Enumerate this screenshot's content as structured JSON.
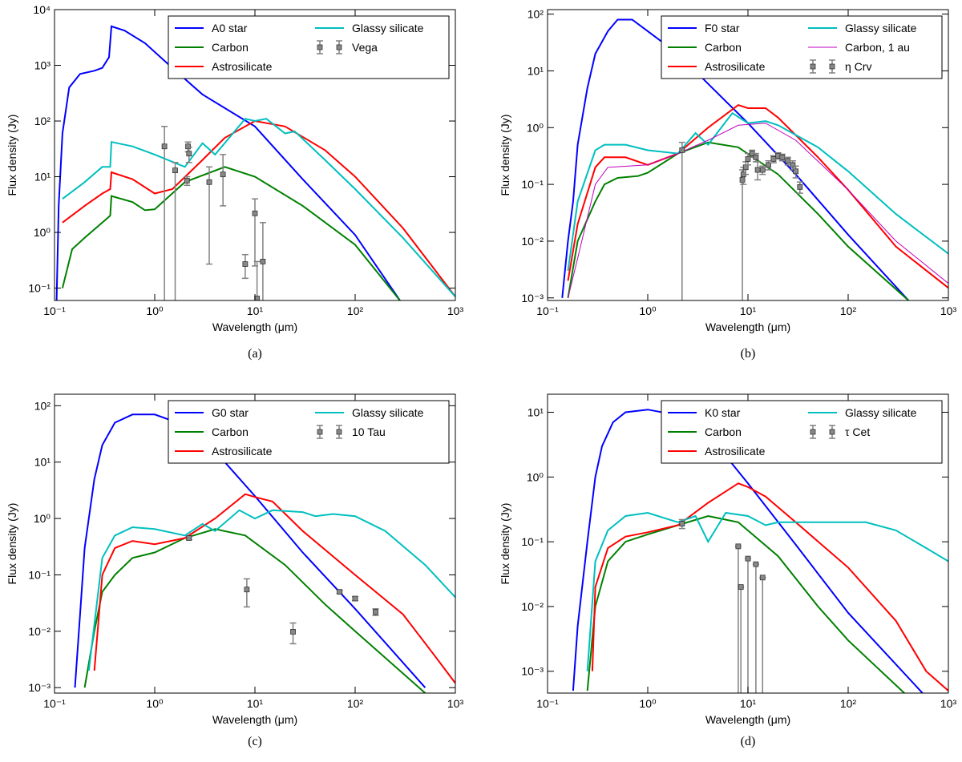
{
  "chart_data": [
    {
      "type": "line",
      "caption": "(a)",
      "x_label": "Wavelength (μm)",
      "y_label": "Flux density (Jy)",
      "log_x": true,
      "log_y": true,
      "legend": "upper right",
      "xlim": [
        0.1,
        1000
      ],
      "ylim": [
        0.06,
        10000
      ],
      "xticks": [
        {
          "value": 0.1,
          "label": "10⁻¹"
        },
        {
          "value": 1,
          "label": "10⁰"
        },
        {
          "value": 10,
          "label": "10¹"
        },
        {
          "value": 100,
          "label": "10²"
        },
        {
          "value": 1000,
          "label": "10³"
        }
      ],
      "yticks": [
        {
          "value": 0.1,
          "label": "10⁻¹"
        },
        {
          "value": 1,
          "label": "10⁰"
        },
        {
          "value": 10,
          "label": "10¹"
        },
        {
          "value": 100,
          "label": "10²"
        },
        {
          "value": 1000,
          "label": "10³"
        },
        {
          "value": 10000,
          "label": "10⁴"
        }
      ],
      "series": [
        {
          "name": "A0 star",
          "color": "#0000ff",
          "x": [
            0.105,
            0.11,
            0.12,
            0.14,
            0.18,
            0.25,
            0.3,
            0.35,
            0.37,
            0.5,
            0.8,
            1.5,
            3,
            10,
            30,
            100,
            280
          ],
          "values": [
            0.06,
            3,
            60,
            400,
            700,
            800,
            900,
            1400,
            5000,
            4200,
            2500,
            900,
            300,
            80,
            9,
            0.9,
            0.06
          ]
        },
        {
          "name": "Carbon",
          "color": "#008000",
          "x": [
            0.12,
            0.15,
            0.2,
            0.3,
            0.36,
            0.37,
            0.6,
            0.8,
            1,
            2,
            5,
            10,
            30,
            100,
            280
          ],
          "values": [
            0.1,
            0.5,
            0.8,
            1.5,
            2,
            4.5,
            3.5,
            2.5,
            2.6,
            8,
            15,
            10,
            3,
            0.6,
            0.06
          ]
        },
        {
          "name": "Astrosilicate",
          "color": "#ff0000",
          "x": [
            0.12,
            0.2,
            0.3,
            0.36,
            0.37,
            0.6,
            1,
            1.5,
            3,
            5,
            10,
            20,
            50,
            100,
            300,
            1000
          ],
          "values": [
            1.5,
            3,
            5,
            6,
            12,
            9,
            5,
            6,
            20,
            50,
            100,
            80,
            30,
            10,
            1.2,
            0.07
          ]
        },
        {
          "name": "Glassy silicate",
          "color": "#00bfbf",
          "x": [
            0.12,
            0.2,
            0.3,
            0.36,
            0.37,
            0.6,
            1,
            2,
            3,
            4,
            8,
            10,
            13,
            20,
            25,
            50,
            100,
            300,
            1000
          ],
          "values": [
            4,
            8,
            15,
            15,
            42,
            35,
            25,
            15,
            40,
            25,
            110,
            100,
            110,
            60,
            65,
            20,
            6,
            0.8,
            0.07
          ]
        },
        {
          "name": "Vega",
          "type": "errorbar",
          "color": "#808080",
          "x": [
            1.25,
            1.6,
            2.15,
            2.2,
            2.1,
            3.5,
            4.8,
            8,
            10,
            10.5,
            12
          ],
          "values": [
            35,
            13,
            35,
            26,
            8.5,
            8,
            11,
            0.27,
            2.2,
            0.065,
            0.3
          ],
          "lower": [
            0,
            0,
            28,
            18,
            7,
            0.27,
            3,
            0.15,
            0.25,
            0,
            0
          ],
          "upper": [
            80,
            18,
            42,
            34,
            10,
            15,
            25,
            0.4,
            4,
            0.3,
            1.5
          ]
        }
      ]
    },
    {
      "type": "line",
      "caption": "(b)",
      "x_label": "Wavelength (μm)",
      "y_label": "Flux density (Jy)",
      "log_x": true,
      "log_y": true,
      "legend": "upper right",
      "xlim": [
        0.1,
        1000
      ],
      "ylim": [
        0.0009,
        120
      ],
      "xticks": [
        {
          "value": 0.1,
          "label": "10⁻¹"
        },
        {
          "value": 1,
          "label": "10⁰"
        },
        {
          "value": 10,
          "label": "10¹"
        },
        {
          "value": 100,
          "label": "10²"
        },
        {
          "value": 1000,
          "label": "10³"
        }
      ],
      "yticks": [
        {
          "value": 0.001,
          "label": "10⁻³"
        },
        {
          "value": 0.01,
          "label": "10⁻²"
        },
        {
          "value": 0.1,
          "label": "10⁻¹"
        },
        {
          "value": 1,
          "label": "10⁰"
        },
        {
          "value": 10,
          "label": "10¹"
        },
        {
          "value": 100,
          "label": "10²"
        }
      ],
      "series": [
        {
          "name": "F0 star",
          "color": "#0000ff",
          "x": [
            0.14,
            0.16,
            0.18,
            0.2,
            0.25,
            0.3,
            0.4,
            0.5,
            0.7,
            1,
            2,
            5,
            10,
            30,
            100,
            400
          ],
          "values": [
            0.001,
            0.01,
            0.05,
            0.5,
            5,
            20,
            50,
            80,
            80,
            50,
            20,
            4,
            1.2,
            0.15,
            0.013,
            0.0009
          ]
        },
        {
          "name": "Carbon",
          "color": "#008000",
          "x": [
            0.16,
            0.2,
            0.3,
            0.37,
            0.5,
            0.8,
            1,
            2,
            4,
            8,
            20,
            50,
            100,
            400
          ],
          "values": [
            0.001,
            0.01,
            0.05,
            0.1,
            0.13,
            0.14,
            0.16,
            0.35,
            0.55,
            0.45,
            0.15,
            0.03,
            0.008,
            0.0009
          ]
        },
        {
          "name": "Astrosilicate",
          "color": "#ff0000",
          "x": [
            0.16,
            0.2,
            0.3,
            0.37,
            0.6,
            1,
            2,
            4,
            8,
            10,
            15,
            20,
            50,
            100,
            300,
            1000
          ],
          "values": [
            0.002,
            0.02,
            0.2,
            0.3,
            0.3,
            0.22,
            0.35,
            1,
            2.5,
            2.2,
            2.2,
            1.5,
            0.3,
            0.08,
            0.008,
            0.0015
          ]
        },
        {
          "name": "Glassy silicate",
          "color": "#00bfbf",
          "x": [
            0.16,
            0.2,
            0.3,
            0.37,
            0.6,
            1,
            2,
            3,
            4,
            7,
            10,
            15,
            20,
            50,
            100,
            300,
            1000
          ],
          "values": [
            0.003,
            0.05,
            0.4,
            0.5,
            0.5,
            0.4,
            0.35,
            0.8,
            0.5,
            1.8,
            1.2,
            1.3,
            1.1,
            0.45,
            0.17,
            0.03,
            0.006
          ]
        },
        {
          "name": "Carbon, 1 au",
          "color": "#bf00bf",
          "x": [
            0.16,
            0.2,
            0.3,
            0.4,
            1,
            2,
            4,
            8,
            15,
            30,
            100,
            300,
            1000
          ],
          "values": [
            0.001,
            0.005,
            0.1,
            0.2,
            0.22,
            0.35,
            0.6,
            1.1,
            1.2,
            0.6,
            0.08,
            0.01,
            0.0018
          ]
        },
        {
          "name": "η Crv",
          "type": "errorbar",
          "color": "#808080",
          "x": [
            2.2,
            8.8,
            9,
            9.5,
            10,
            11,
            12,
            12.5,
            14,
            16,
            18,
            20,
            22,
            25,
            28,
            30,
            33
          ],
          "values": [
            0.4,
            0.12,
            0.15,
            0.2,
            0.28,
            0.35,
            0.3,
            0.18,
            0.18,
            0.22,
            0.28,
            0.32,
            0.3,
            0.26,
            0.22,
            0.17,
            0.09
          ],
          "lower": [
            0,
            0,
            0.1,
            0.15,
            0.22,
            0.3,
            0.25,
            0.12,
            0.15,
            0.18,
            0.24,
            0.28,
            0.26,
            0.22,
            0.18,
            0.13,
            0.07
          ],
          "upper": [
            0.55,
            0.18,
            0.2,
            0.25,
            0.35,
            0.4,
            0.35,
            0.25,
            0.21,
            0.26,
            0.32,
            0.36,
            0.34,
            0.3,
            0.26,
            0.21,
            0.11
          ]
        }
      ]
    },
    {
      "type": "line",
      "caption": "(c)",
      "x_label": "Wavelength (μm)",
      "y_label": "Flux density (Jy)",
      "log_x": true,
      "log_y": true,
      "legend": "upper right",
      "xlim": [
        0.1,
        1000
      ],
      "ylim": [
        0.0008,
        160
      ],
      "xticks": [
        {
          "value": 0.1,
          "label": "10⁻¹"
        },
        {
          "value": 1,
          "label": "10⁰"
        },
        {
          "value": 10,
          "label": "10¹"
        },
        {
          "value": 100,
          "label": "10²"
        },
        {
          "value": 1000,
          "label": "10³"
        }
      ],
      "yticks": [
        {
          "value": 0.001,
          "label": "10⁻³"
        },
        {
          "value": 0.01,
          "label": "10⁻²"
        },
        {
          "value": 0.1,
          "label": "10⁻¹"
        },
        {
          "value": 1,
          "label": "10⁰"
        },
        {
          "value": 10,
          "label": "10¹"
        },
        {
          "value": 100,
          "label": "10²"
        }
      ],
      "series": [
        {
          "name": "G0 star",
          "color": "#0000ff",
          "x": [
            0.16,
            0.18,
            0.2,
            0.25,
            0.3,
            0.4,
            0.6,
            1,
            2,
            5,
            10,
            30,
            100,
            500
          ],
          "values": [
            0.001,
            0.02,
            0.3,
            5,
            20,
            50,
            70,
            70,
            45,
            10,
            2.5,
            0.25,
            0.025,
            0.001
          ]
        },
        {
          "name": "Carbon",
          "color": "#008000",
          "x": [
            0.2,
            0.25,
            0.3,
            0.4,
            0.6,
            1,
            2,
            4,
            8,
            20,
            50,
            100,
            500
          ],
          "values": [
            0.001,
            0.01,
            0.05,
            0.1,
            0.2,
            0.25,
            0.45,
            0.65,
            0.5,
            0.15,
            0.03,
            0.01,
            0.0008
          ]
        },
        {
          "name": "Astrosilicate",
          "color": "#ff0000",
          "x": [
            0.25,
            0.3,
            0.4,
            0.6,
            1,
            2,
            4,
            8,
            10,
            15,
            30,
            100,
            300,
            600,
            1000
          ],
          "values": [
            0.002,
            0.1,
            0.3,
            0.4,
            0.35,
            0.45,
            1,
            2.7,
            2.4,
            2,
            0.6,
            0.1,
            0.02,
            0.004,
            0.0012
          ]
        },
        {
          "name": "Glassy silicate",
          "color": "#00bfbf",
          "x": [
            0.22,
            0.3,
            0.4,
            0.6,
            1,
            2,
            3,
            4,
            7,
            10,
            15,
            30,
            40,
            60,
            100,
            200,
            500,
            1000
          ],
          "values": [
            0.002,
            0.2,
            0.5,
            0.7,
            0.65,
            0.5,
            0.8,
            0.6,
            1.4,
            1,
            1.4,
            1.3,
            1.1,
            1.2,
            1.1,
            0.6,
            0.15,
            0.04
          ]
        },
        {
          "name": "10 Tau",
          "type": "errorbar",
          "color": "#808080",
          "x": [
            2.2,
            8.3,
            24,
            70,
            100,
            160
          ],
          "values": [
            0.45,
            0.055,
            0.0098,
            0.05,
            0.038,
            0.022
          ],
          "lower": [
            0.42,
            0.027,
            0.006,
            0.047,
            0.035,
            0.019
          ],
          "upper": [
            0.48,
            0.085,
            0.014,
            0.053,
            0.041,
            0.025
          ]
        }
      ]
    },
    {
      "type": "line",
      "caption": "(d)",
      "x_label": "Wavelength (μm)",
      "y_label": "Flux density (Jy)",
      "log_x": true,
      "log_y": true,
      "legend": "upper right",
      "xlim": [
        0.1,
        1000
      ],
      "ylim": [
        0.00046,
        19
      ],
      "xticks": [
        {
          "value": 0.1,
          "label": "10⁻¹"
        },
        {
          "value": 1,
          "label": "10⁰"
        },
        {
          "value": 10,
          "label": "10¹"
        },
        {
          "value": 100,
          "label": "10²"
        },
        {
          "value": 1000,
          "label": "10³"
        }
      ],
      "yticks": [
        {
          "value": 0.001,
          "label": "10⁻³"
        },
        {
          "value": 0.01,
          "label": "10⁻²"
        },
        {
          "value": 0.1,
          "label": "10⁻¹"
        },
        {
          "value": 1,
          "label": "10⁰"
        },
        {
          "value": 10,
          "label": "10¹"
        }
      ],
      "series": [
        {
          "name": "K0 star",
          "color": "#0000ff",
          "x": [
            0.18,
            0.2,
            0.25,
            0.3,
            0.35,
            0.45,
            0.6,
            1,
            2,
            5,
            10,
            30,
            100,
            600
          ],
          "values": [
            0.0005,
            0.005,
            0.1,
            1,
            3,
            7,
            10,
            11,
            9,
            3,
            0.8,
            0.09,
            0.008,
            0.0004
          ]
        },
        {
          "name": "Carbon",
          "color": "#008000",
          "x": [
            0.25,
            0.3,
            0.4,
            0.6,
            1,
            2,
            4,
            8,
            20,
            50,
            100,
            400
          ],
          "values": [
            0.0005,
            0.01,
            0.05,
            0.1,
            0.13,
            0.18,
            0.25,
            0.2,
            0.06,
            0.01,
            0.003,
            0.0004
          ]
        },
        {
          "name": "Astrosilicate",
          "color": "#ff0000",
          "x": [
            0.28,
            0.3,
            0.4,
            0.6,
            1,
            2,
            4,
            8,
            10,
            15,
            30,
            100,
            300,
            600,
            1000
          ],
          "values": [
            0.001,
            0.02,
            0.08,
            0.12,
            0.14,
            0.18,
            0.4,
            0.8,
            0.7,
            0.5,
            0.2,
            0.04,
            0.006,
            0.001,
            0.0005
          ]
        },
        {
          "name": "Glassy silicate",
          "color": "#00bfbf",
          "x": [
            0.25,
            0.3,
            0.4,
            0.6,
            1,
            2,
            3,
            4,
            6,
            10,
            15,
            20,
            50,
            150,
            300,
            600,
            1000
          ],
          "values": [
            0.001,
            0.05,
            0.15,
            0.25,
            0.28,
            0.2,
            0.25,
            0.1,
            0.28,
            0.25,
            0.18,
            0.2,
            0.2,
            0.2,
            0.15,
            0.08,
            0.05
          ]
        },
        {
          "name": "τ Cet",
          "type": "errorbar",
          "color": "#808080",
          "x": [
            2.2,
            8,
            8.5,
            10,
            12,
            14
          ],
          "values": [
            0.19,
            0.085,
            0.02,
            0.055,
            0.045,
            0.028
          ],
          "lower": [
            0.16,
            0,
            0,
            0,
            0,
            0
          ],
          "upper": [
            0.22,
            0.085,
            0.02,
            0.055,
            0.045,
            0.028
          ]
        }
      ]
    }
  ]
}
